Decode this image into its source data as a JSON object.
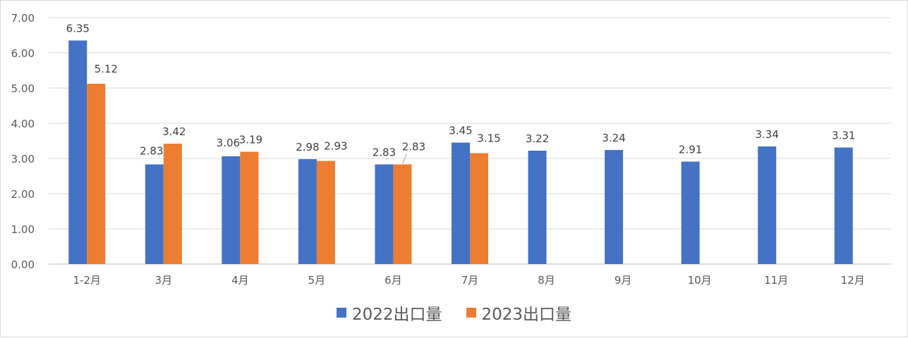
{
  "chart_data": {
    "type": "bar",
    "title": "",
    "xlabel": "",
    "ylabel": "",
    "ylim": [
      0,
      7
    ],
    "y_ticks": [
      "0.00",
      "1.00",
      "2.00",
      "3.00",
      "4.00",
      "5.00",
      "6.00",
      "7.00"
    ],
    "grid": "horizontal",
    "legend_position": "bottom",
    "categories": [
      "1-2月",
      "3月",
      "4月",
      "5月",
      "6月",
      "7月",
      "8月",
      "9月",
      "10月",
      "11月",
      "12月"
    ],
    "series": [
      {
        "name": "2022出口量",
        "color": "#4472c4",
        "values": [
          6.35,
          2.83,
          3.06,
          2.98,
          2.83,
          3.45,
          3.22,
          3.24,
          2.91,
          3.34,
          3.31
        ],
        "labels": [
          "6.35",
          "2.83",
          "3.06",
          "2.98",
          "2.83",
          "3.45",
          "3.22",
          "3.24",
          "2.91",
          "3.34",
          "3.31"
        ]
      },
      {
        "name": "2023出口量",
        "color": "#ed7d31",
        "values": [
          5.12,
          3.42,
          3.19,
          2.93,
          2.83,
          3.15,
          null,
          null,
          null,
          null,
          null
        ],
        "labels": [
          "5.12",
          "3.42",
          "3.19",
          "2.93",
          "2.83",
          "3.15",
          null,
          null,
          null,
          null,
          null
        ]
      }
    ]
  }
}
